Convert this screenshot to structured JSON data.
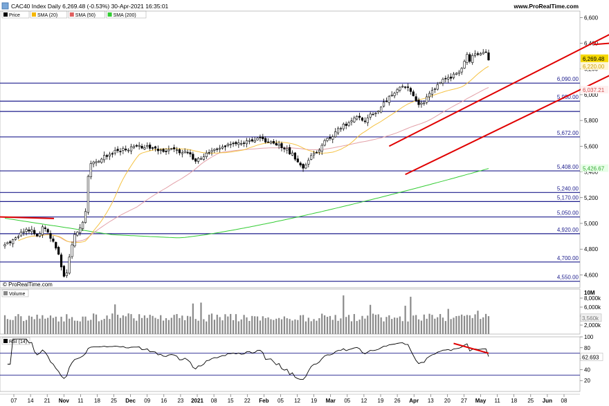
{
  "header": {
    "title": "CAC40 Index Daily 6,269.48 (-0.53%) 30-Apr-2021 16:35:01",
    "website": "www.ProRealTime.com",
    "watermark": "© ProRealTime.com"
  },
  "legend": [
    {
      "label": "Price",
      "color": "#000000"
    },
    {
      "label": "SMA (20)",
      "color": "#f5b700"
    },
    {
      "label": "SMA (50)",
      "color": "#e06060"
    },
    {
      "label": "SMA (200)",
      "color": "#33cc33"
    }
  ],
  "chart_data": [
    {
      "type": "candlestick",
      "title": "CAC40 Index Daily",
      "ylim": [
        4500,
        6650
      ],
      "y_ticks": [
        4600,
        4800,
        5000,
        5200,
        5400,
        5600,
        5800,
        6000,
        6200,
        6400,
        6600
      ],
      "y_tick_labels": [
        "4,600",
        "4,800",
        "5,000",
        "5,200",
        "5,400",
        "5,600",
        "5,800",
        "6,000",
        "6,200",
        "6,400",
        "6,600"
      ],
      "price_tag": {
        "label": "6,269.48",
        "value": 6269.48
      },
      "sma20_tag": {
        "label": "6,220.00",
        "value": 6220.0
      },
      "sma50_tag": {
        "label": "6,037.21",
        "value": 6037.21
      },
      "sma200_tag": {
        "label": "5,426.67",
        "value": 5426.67
      },
      "levels": [
        {
          "value": 6090,
          "label": "6,090.00"
        },
        {
          "value": 5950,
          "label": "5,950.00"
        },
        {
          "value": 5870,
          "label": ""
        },
        {
          "value": 5672,
          "label": "5,672.00"
        },
        {
          "value": 5408,
          "label": "5,408.00"
        },
        {
          "value": 5240,
          "label": "5,240.00"
        },
        {
          "value": 5170,
          "label": "5,170.00"
        },
        {
          "value": 5050,
          "label": "5,050.00"
        },
        {
          "value": 4920,
          "label": "4,920.00"
        },
        {
          "value": 4700,
          "label": "4,700.00"
        },
        {
          "value": 4550,
          "label": "4,550.00"
        }
      ],
      "x_labels": [
        "07",
        "14",
        "21",
        "Nov",
        "11",
        "18",
        "25",
        "Dec",
        "09",
        "16",
        "23",
        "2021",
        "08",
        "15",
        "22",
        "Feb",
        "05",
        "12",
        "19",
        "Mar",
        "05",
        "12",
        "19",
        "26",
        "Apr",
        "13",
        "20",
        "27",
        "May",
        "11",
        "18",
        "25",
        "Jun",
        "08"
      ],
      "trendlines": [
        {
          "from": [
            -999,
            5050
          ],
          "to": [
            -950,
            5038
          ],
          "index_based": false
        },
        {
          "from": [
            143,
            5600
          ],
          "to": [
            229,
            6510
          ],
          "index_based": true
        },
        {
          "from": [
            149,
            5380
          ],
          "to": [
            231,
            6210
          ],
          "index_based": true
        },
        {
          "from": [
            219,
            6390
          ],
          "to": [
            231,
            6410
          ],
          "index_based": true
        }
      ]
    },
    {
      "type": "bar",
      "title": "Volume",
      "unit_label": "10M",
      "y_ticks": [
        2000,
        4000,
        6000,
        8000
      ],
      "y_tick_labels": [
        "2,000k",
        "4,000k",
        "6,000k",
        "8,000k"
      ],
      "last_tag": "3,560k",
      "ylim": [
        0,
        10000
      ]
    },
    {
      "type": "line",
      "title": "RSI (14)",
      "ylim": [
        0,
        100
      ],
      "y_ticks": [
        20,
        40,
        60,
        80,
        100
      ],
      "y_tick_labels": [
        "20",
        "40",
        "60",
        "80",
        "100"
      ],
      "levels": [
        30,
        70
      ],
      "last_tag": "62.693"
    }
  ]
}
